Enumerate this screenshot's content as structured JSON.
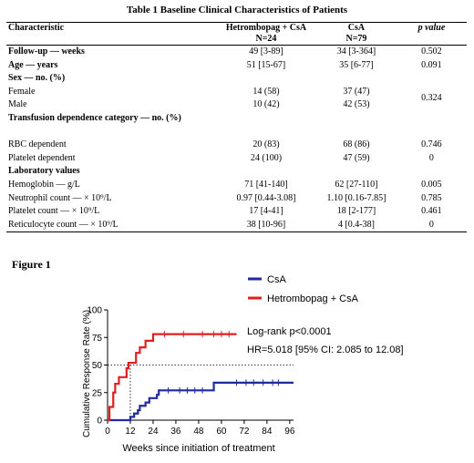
{
  "table": {
    "title": "Table 1 Baseline Clinical Characteristics of Patients",
    "headers": {
      "characteristic": "Characteristic",
      "group1": "Hetrombopag + CsA",
      "group1_n": "N=24",
      "group2": "CsA",
      "group2_n": "N=79",
      "pvalue": "p value"
    },
    "rows": [
      {
        "label": "Follow-up — weeks",
        "g1": "49 [3-89]",
        "g2": "34 [3-364]",
        "p": "0.502"
      },
      {
        "label": "Age — years",
        "g1": "51 [15-67]",
        "g2": "35 [6-77]",
        "p": "0.091"
      },
      {
        "label": "Sex — no. (%)",
        "g1": "",
        "g2": "",
        "p": ""
      },
      {
        "label": "Female",
        "g1": "14 (58)",
        "g2": "37 (47)",
        "p": "0.324"
      },
      {
        "label": "Male",
        "g1": "10 (42)",
        "g2": "42 (53)",
        "p": ""
      },
      {
        "label": "Transfusion dependence category — no. (%)",
        "g1": "",
        "g2": "",
        "p": ""
      },
      {
        "label": "RBC dependent",
        "g1": "20 (83)",
        "g2": "68 (86)",
        "p": "0.746"
      },
      {
        "label": "Platelet dependent",
        "g1": "24 (100)",
        "g2": "47 (59)",
        "p": "0"
      },
      {
        "label": "Laboratory values",
        "g1": "",
        "g2": "",
        "p": ""
      },
      {
        "label": "Hemoglobin — g/L",
        "g1": "71 [41-140]",
        "g2": "62 [27-110]",
        "p": "0.005"
      },
      {
        "label": "Neutrophil count — × 10⁹/L",
        "g1": "0.97 [0.44-3.08]",
        "g2": "1.10 [0.16-7.85]",
        "p": "0.785"
      },
      {
        "label": "Platelet count — × 10⁹/L",
        "g1": "17 [4-41]",
        "g2": "18 [2-177]",
        "p": "0.461"
      },
      {
        "label": "Reticulocyte count — × 10⁹/L",
        "g1": "38 [10-96]",
        "g2": "4 [0.4-38]",
        "p": "0"
      }
    ]
  },
  "figure": {
    "label": "Figure 1",
    "annotations": {
      "logrank": "Log-rank p<0.0001",
      "hr": "HR=5.018 [95% CI: 2.085 to 12.08]"
    }
  },
  "chart_data": {
    "type": "line",
    "subtype": "kaplan-meier-step",
    "xlabel": "Weeks since  initiation of treatment",
    "ylabel": "Cumulative Response Rate (%)",
    "xlim": [
      0,
      98
    ],
    "ylim": [
      0,
      100
    ],
    "xticks": [
      0,
      12,
      24,
      36,
      48,
      60,
      72,
      84,
      96
    ],
    "yticks": [
      0,
      25,
      50,
      75,
      100
    ],
    "reference_line": {
      "y": 50,
      "x": 12,
      "style": "dotted"
    },
    "legend": {
      "placement": "top-right"
    },
    "series": [
      {
        "name": "CsA",
        "color": "#1f2a9e",
        "steps": [
          [
            0,
            0
          ],
          [
            12,
            0
          ],
          [
            12,
            3
          ],
          [
            14,
            3
          ],
          [
            14,
            6
          ],
          [
            16,
            6
          ],
          [
            16,
            9
          ],
          [
            17,
            9
          ],
          [
            17,
            13
          ],
          [
            20,
            13
          ],
          [
            20,
            16
          ],
          [
            22,
            16
          ],
          [
            22,
            20
          ],
          [
            26,
            20
          ],
          [
            26,
            23
          ],
          [
            27,
            23
          ],
          [
            27,
            27
          ],
          [
            56,
            27
          ],
          [
            56,
            34
          ],
          [
            98,
            34
          ]
        ],
        "censored": [
          [
            32,
            27
          ],
          [
            38,
            27
          ],
          [
            42,
            27
          ],
          [
            46,
            27
          ],
          [
            50,
            27
          ],
          [
            68,
            34
          ],
          [
            73,
            34
          ],
          [
            77,
            34
          ],
          [
            82,
            34
          ],
          [
            87,
            34
          ],
          [
            90,
            34
          ]
        ]
      },
      {
        "name": "Hetrombopag + CsA",
        "color": "#e02020",
        "steps": [
          [
            0,
            0
          ],
          [
            1,
            0
          ],
          [
            1,
            12
          ],
          [
            3,
            12
          ],
          [
            3,
            25
          ],
          [
            4,
            25
          ],
          [
            4,
            33
          ],
          [
            6,
            33
          ],
          [
            6,
            39
          ],
          [
            10,
            39
          ],
          [
            10,
            47
          ],
          [
            11,
            47
          ],
          [
            11,
            52
          ],
          [
            15,
            52
          ],
          [
            15,
            61
          ],
          [
            17,
            61
          ],
          [
            17,
            66
          ],
          [
            20,
            66
          ],
          [
            20,
            72
          ],
          [
            24,
            72
          ],
          [
            24,
            78
          ],
          [
            68,
            78
          ]
        ],
        "censored": [
          [
            30,
            78
          ],
          [
            40,
            78
          ],
          [
            50,
            78
          ],
          [
            56,
            78
          ],
          [
            60,
            78
          ],
          [
            64,
            78
          ]
        ]
      }
    ]
  }
}
